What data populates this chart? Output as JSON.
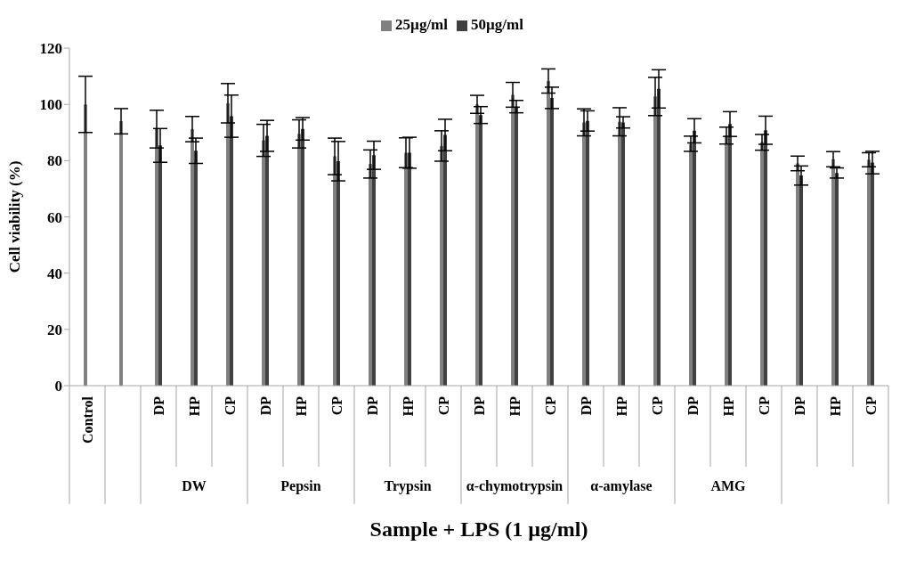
{
  "chart_data": {
    "type": "bar",
    "categories": [
      "Control",
      null,
      "DP",
      "HP",
      "CP",
      "DP",
      "HP",
      "CP",
      "DP",
      "HP",
      "CP",
      "DP",
      "HP",
      "CP",
      "DP",
      "HP",
      "CP",
      "DP",
      "HP",
      "CP",
      "DP",
      "HP",
      "CP"
    ],
    "series": [
      {
        "name": "25µg/ml",
        "color": "#808080",
        "values": [
          100,
          94,
          91.2,
          91.2,
          100.4,
          87.2,
          89.5,
          81.5,
          78.8,
          82.8,
          85.2,
          100,
          103.4,
          108.3,
          93.6,
          93.8,
          102.8,
          86,
          88.9,
          86.5,
          79,
          80.5,
          80.3
        ],
        "errors": [
          10,
          4.5,
          6.7,
          4.5,
          7,
          5.7,
          5,
          6.5,
          5,
          5.3,
          5.4,
          3.2,
          4.4,
          4.3,
          4.8,
          5,
          6.8,
          2.7,
          3,
          2.8,
          2.6,
          2.7,
          2.5
        ]
      },
      {
        "name": "50µg/ml",
        "color": "#404040",
        "values": [
          null,
          null,
          85.4,
          83.5,
          95.8,
          88.8,
          91.3,
          79.8,
          81.9,
          82.8,
          89.1,
          96.2,
          99.2,
          102.3,
          94.1,
          93.6,
          105.5,
          90.6,
          93,
          90.8,
          74.7,
          75.6,
          79.3
        ],
        "errors": [
          null,
          null,
          6,
          4.5,
          7.5,
          5.5,
          4,
          7,
          5,
          5.5,
          5.6,
          3,
          2.2,
          3.8,
          3.6,
          2,
          6.8,
          4.3,
          4.4,
          5,
          3.4,
          1.8,
          4
        ]
      }
    ],
    "annotations": [
      "DW",
      "Pepsin",
      "Trypsin",
      "α-chymotrypsin",
      "α-amylase",
      "AMG"
    ],
    "xlabel": "Sample + LPS (1 µg/ml)",
    "ylabel": "Cell viability (%)",
    "ylim": [
      0,
      120
    ],
    "yticks": [
      0,
      20,
      40,
      60,
      80,
      100,
      120
    ],
    "legend": "top"
  }
}
